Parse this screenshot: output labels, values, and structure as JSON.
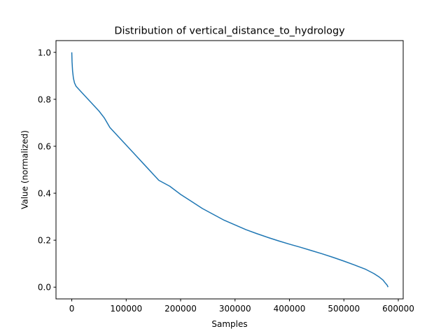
{
  "chart_data": {
    "type": "line",
    "title": "Distribution of vertical_distance_to_hydrology",
    "xlabel": "Samples",
    "ylabel": "Value (normalized)",
    "xlim": [
      -29000,
      609000
    ],
    "ylim": [
      -0.05,
      1.05
    ],
    "x_ticks": [
      0,
      100000,
      200000,
      300000,
      400000,
      500000,
      600000
    ],
    "x_tick_labels": [
      "0",
      "100000",
      "200000",
      "300000",
      "400000",
      "500000",
      "600000"
    ],
    "y_ticks": [
      0.0,
      0.2,
      0.4,
      0.6,
      0.8,
      1.0
    ],
    "y_tick_labels": [
      "0.0",
      "0.2",
      "0.4",
      "0.6",
      "0.8",
      "1.0"
    ],
    "grid": false,
    "series": [
      {
        "name": "vertical_distance_to_hydrology",
        "color": "#1f77b4",
        "x": [
          0,
          500,
          1500,
          3000,
          5000,
          8000,
          12000,
          20000,
          30000,
          40000,
          50000,
          60000,
          70000,
          80000,
          90000,
          100000,
          110000,
          120000,
          130000,
          140000,
          150000,
          160000,
          180000,
          200000,
          220000,
          240000,
          260000,
          280000,
          300000,
          320000,
          340000,
          360000,
          380000,
          400000,
          420000,
          440000,
          460000,
          480000,
          500000,
          520000,
          540000,
          555000,
          565000,
          572000,
          576000,
          579000,
          580500,
          581000
        ],
        "y": [
          1.0,
          0.96,
          0.92,
          0.89,
          0.87,
          0.855,
          0.845,
          0.825,
          0.8,
          0.775,
          0.75,
          0.72,
          0.68,
          0.655,
          0.63,
          0.605,
          0.58,
          0.555,
          0.53,
          0.505,
          0.48,
          0.455,
          0.43,
          0.395,
          0.365,
          0.335,
          0.31,
          0.285,
          0.265,
          0.245,
          0.228,
          0.212,
          0.197,
          0.183,
          0.17,
          0.156,
          0.142,
          0.127,
          0.111,
          0.094,
          0.076,
          0.058,
          0.043,
          0.03,
          0.018,
          0.01,
          0.004,
          0.0
        ]
      }
    ]
  }
}
